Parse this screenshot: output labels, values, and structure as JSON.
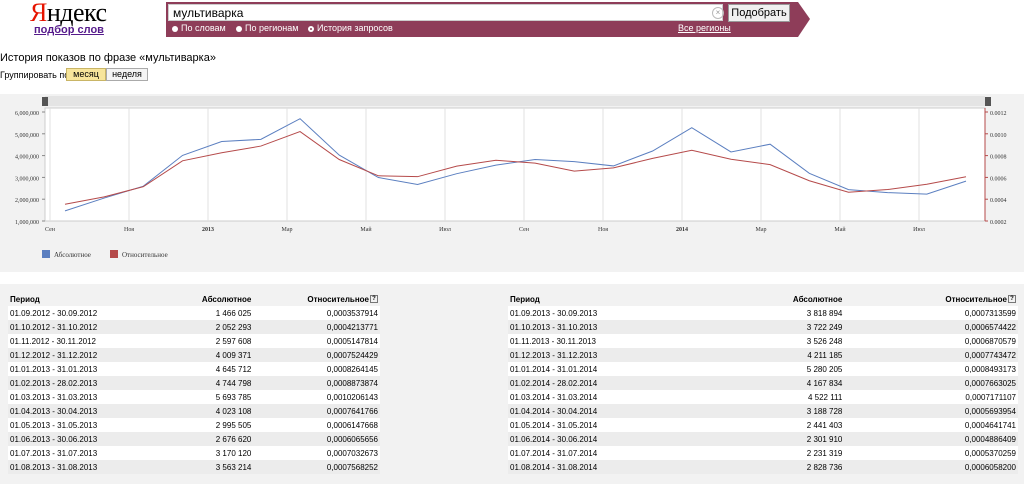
{
  "header": {
    "logo_first": "Я",
    "logo_rest": "ндекс",
    "logo_sub": "подбор слов",
    "search_value": "мультиварка",
    "search_button": "Подобрать",
    "radios": [
      "По словам",
      "По регионам",
      "История запросов"
    ],
    "regions_link": "Все регионы"
  },
  "page": {
    "title": "История показов по фразе «мультиварка»",
    "group_label": "Группировать по:",
    "group_month": "месяц",
    "group_week": "неделя"
  },
  "legend": {
    "abs": "Абсолютное",
    "rel": "Относительное"
  },
  "chart_data": {
    "type": "line",
    "x": [
      "09.2012",
      "10.2012",
      "11.2012",
      "12.2012",
      "01.2013",
      "02.2013",
      "03.2013",
      "04.2013",
      "05.2013",
      "06.2013",
      "07.2013",
      "08.2013",
      "09.2013",
      "10.2013",
      "11.2013",
      "12.2013",
      "01.2014",
      "02.2014",
      "03.2014",
      "04.2014",
      "05.2014",
      "06.2014",
      "07.2014",
      "08.2014"
    ],
    "x_tick_labels": [
      "Сен",
      "Ноя",
      "2013",
      "Мар",
      "Май",
      "Июл",
      "Сен",
      "Ноя",
      "2014",
      "Мар",
      "Май",
      "Июл"
    ],
    "y_left_ticks": [
      "1,000,000",
      "2,000,000",
      "3,000,000",
      "4,000,000",
      "5,000,000",
      "6,000,000"
    ],
    "y_right_ticks": [
      "0.0002",
      "0.0004",
      "0.0006",
      "0.0008",
      "0.0010",
      "0.0012"
    ],
    "ylim_left": [
      1000000,
      6000000
    ],
    "ylim_right": [
      0.0002,
      0.0012
    ],
    "series": [
      {
        "name": "Абсолютное",
        "color": "#5b7fc0",
        "axis": "left",
        "values": [
          1466025,
          2052293,
          2597608,
          4009371,
          4645712,
          4744798,
          5693785,
          4023108,
          2995505,
          2676620,
          3170120,
          3563214,
          3818894,
          3722249,
          3526248,
          4211185,
          5280205,
          4167834,
          4522111,
          3188728,
          2441403,
          2301910,
          2231319,
          2828736
        ]
      },
      {
        "name": "Относительное",
        "color": "#b54a4a",
        "axis": "right",
        "values": [
          0.0003537914,
          0.0004213771,
          0.0005147814,
          0.0007524429,
          0.0008264145,
          0.0008873874,
          0.0010206143,
          0.0007641766,
          0.0006147668,
          0.0006065656,
          0.0007032673,
          0.0007568252,
          0.0007313599,
          0.0006574422,
          0.0006870579,
          0.0007743472,
          0.0008493173,
          0.0007663025,
          0.0007171107,
          0.0005693954,
          0.0004641741,
          0.0004886409,
          0.0005370259,
          0.00060582
        ]
      }
    ]
  },
  "table": {
    "headers": {
      "period": "Период",
      "abs": "Абсолютное",
      "rel": "Относительное"
    },
    "left": [
      [
        "01.09.2012 - 30.09.2012",
        "1 466 025",
        "0,0003537914"
      ],
      [
        "01.10.2012 - 31.10.2012",
        "2 052 293",
        "0,0004213771"
      ],
      [
        "01.11.2012 - 30.11.2012",
        "2 597 608",
        "0,0005147814"
      ],
      [
        "01.12.2012 - 31.12.2012",
        "4 009 371",
        "0,0007524429"
      ],
      [
        "01.01.2013 - 31.01.2013",
        "4 645 712",
        "0,0008264145"
      ],
      [
        "01.02.2013 - 28.02.2013",
        "4 744 798",
        "0,0008873874"
      ],
      [
        "01.03.2013 - 31.03.2013",
        "5 693 785",
        "0,0010206143"
      ],
      [
        "01.04.2013 - 30.04.2013",
        "4 023 108",
        "0,0007641766"
      ],
      [
        "01.05.2013 - 31.05.2013",
        "2 995 505",
        "0,0006147668"
      ],
      [
        "01.06.2013 - 30.06.2013",
        "2 676 620",
        "0,0006065656"
      ],
      [
        "01.07.2013 - 31.07.2013",
        "3 170 120",
        "0,0007032673"
      ],
      [
        "01.08.2013 - 31.08.2013",
        "3 563 214",
        "0,0007568252"
      ]
    ],
    "right": [
      [
        "01.09.2013 - 30.09.2013",
        "3 818 894",
        "0,0007313599"
      ],
      [
        "01.10.2013 - 31.10.2013",
        "3 722 249",
        "0,0006574422"
      ],
      [
        "01.11.2013 - 30.11.2013",
        "3 526 248",
        "0,0006870579"
      ],
      [
        "01.12.2013 - 31.12.2013",
        "4 211 185",
        "0,0007743472"
      ],
      [
        "01.01.2014 - 31.01.2014",
        "5 280 205",
        "0,0008493173"
      ],
      [
        "01.02.2014 - 28.02.2014",
        "4 167 834",
        "0,0007663025"
      ],
      [
        "01.03.2014 - 31.03.2014",
        "4 522 111",
        "0,0007171107"
      ],
      [
        "01.04.2014 - 30.04.2014",
        "3 188 728",
        "0,0005693954"
      ],
      [
        "01.05.2014 - 31.05.2014",
        "2 441 403",
        "0,0004641741"
      ],
      [
        "01.06.2014 - 30.06.2014",
        "2 301 910",
        "0,0004886409"
      ],
      [
        "01.07.2014 - 31.07.2014",
        "2 231 319",
        "0,0005370259"
      ],
      [
        "01.08.2014 - 31.08.2014",
        "2 828 736",
        "0,0006058200"
      ]
    ]
  }
}
